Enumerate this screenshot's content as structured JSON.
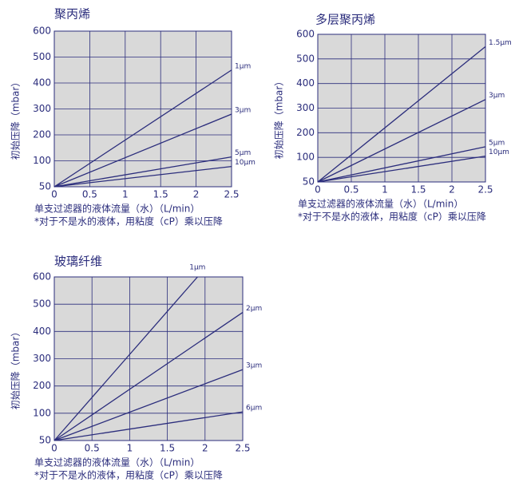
{
  "chart_data": [
    {
      "type": "line",
      "title": "聚丙烯",
      "x_label": "单支过滤器的液体流量（水）（L/min）",
      "note": "*对于不是水的液体，用粘度（cP）乘以压降",
      "y_label": "初始压降（mbar）",
      "xlim": [
        0,
        2.5
      ],
      "xticks": [
        0,
        0.5,
        1,
        1.5,
        2,
        2.5
      ],
      "ylim": [
        50,
        600
      ],
      "yticks": [
        50,
        100,
        200,
        300,
        400,
        500,
        600
      ],
      "grid": true,
      "series": [
        {
          "name": "1μm",
          "color": "#2b2d7c",
          "x": [
            0,
            2.5
          ],
          "values": [
            50,
            450
          ]
        },
        {
          "name": "3μm",
          "color": "#2b2d7c",
          "x": [
            0,
            2.5
          ],
          "values": [
            50,
            280
          ]
        },
        {
          "name": "5μm",
          "color": "#2b2d7c",
          "x": [
            0,
            2.5
          ],
          "values": [
            50,
            115
          ]
        },
        {
          "name": "10μm",
          "color": "#2b2d7c",
          "x": [
            0,
            2.5
          ],
          "values": [
            50,
            89
          ]
        }
      ]
    },
    {
      "type": "line",
      "title": "多层聚丙烯",
      "x_label": "单支过滤器的液体流量（水）（L/min）",
      "note": "*对于不是水的液体，用粘度（cP）乘以压降",
      "y_label": "初始压降（mbar）",
      "xlim": [
        0,
        2.5
      ],
      "xticks": [
        0,
        0.5,
        1,
        1.5,
        2,
        2.5
      ],
      "ylim": [
        50,
        600
      ],
      "yticks": [
        50,
        100,
        200,
        300,
        400,
        500,
        600
      ],
      "grid": true,
      "series": [
        {
          "name": "1.5μm",
          "color": "#2b2d7c",
          "x": [
            0,
            2.5
          ],
          "values": [
            50,
            550
          ]
        },
        {
          "name": "3μm",
          "color": "#2b2d7c",
          "x": [
            0,
            2.5
          ],
          "values": [
            50,
            335
          ]
        },
        {
          "name": "5μm",
          "color": "#2b2d7c",
          "x": [
            0,
            2.5
          ],
          "values": [
            50,
            143
          ]
        },
        {
          "name": "10μm",
          "color": "#2b2d7c",
          "x": [
            0,
            2.5
          ],
          "values": [
            50,
            105
          ]
        }
      ]
    },
    {
      "type": "line",
      "title": "玻璃纤维",
      "x_label": "单支过滤器的液体流量（水）（L/min）",
      "note": "*对于不是水的液体，用粘度（cP）乘以压降",
      "y_label": "初始压降（mbar）",
      "xlim": [
        0,
        2.5
      ],
      "xticks": [
        0,
        0.5,
        1,
        1.5,
        2,
        2.5
      ],
      "ylim": [
        50,
        600
      ],
      "yticks": [
        50,
        100,
        200,
        300,
        400,
        500,
        600
      ],
      "grid": true,
      "series": [
        {
          "name": "1μm",
          "color": "#2b2d7c",
          "x": [
            0,
            1.9
          ],
          "values": [
            50,
            600
          ]
        },
        {
          "name": "2μm",
          "color": "#2b2d7c",
          "x": [
            0,
            2.5
          ],
          "values": [
            50,
            470
          ]
        },
        {
          "name": "3μm",
          "color": "#2b2d7c",
          "x": [
            0,
            2.5
          ],
          "values": [
            50,
            260
          ]
        },
        {
          "name": "6μm",
          "color": "#2b2d7c",
          "x": [
            0,
            2.5
          ],
          "values": [
            50,
            105
          ]
        }
      ]
    }
  ]
}
